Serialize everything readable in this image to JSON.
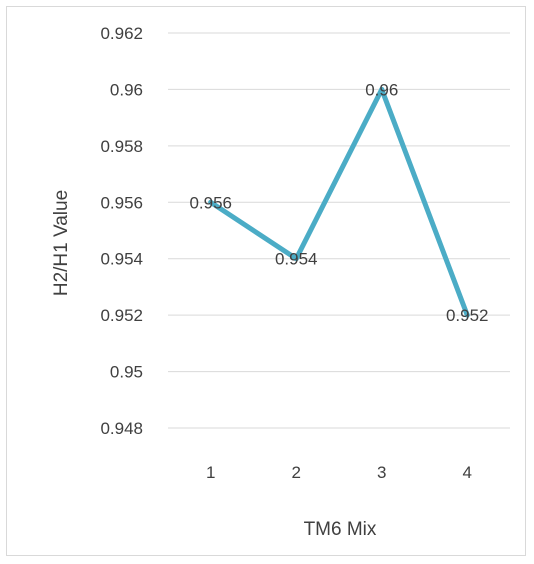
{
  "colors": {
    "series": "#4bacc6",
    "gridline": "#d9d9d9",
    "text": "#404040",
    "border": "#d9d9d9"
  },
  "chart_data": {
    "type": "line",
    "x": [
      "1",
      "2",
      "3",
      "4"
    ],
    "series": [
      {
        "values": [
          0.956,
          0.954,
          0.96,
          0.952
        ],
        "data_labels": [
          "0.956",
          "0.954",
          "0.96",
          "0.952"
        ]
      }
    ],
    "xlabel": "TM6 Mix",
    "ylabel": "H2/H1 Value",
    "ylim": [
      0.947,
      0.963
    ],
    "yticks": [
      0.948,
      0.95,
      0.952,
      0.954,
      0.956,
      0.958,
      0.96,
      0.962
    ],
    "ytick_labels": [
      "0.948",
      "0.95",
      "0.952",
      "0.954",
      "0.956",
      "0.958",
      "0.96",
      "0.962"
    ],
    "grid": true,
    "legend": "none"
  }
}
